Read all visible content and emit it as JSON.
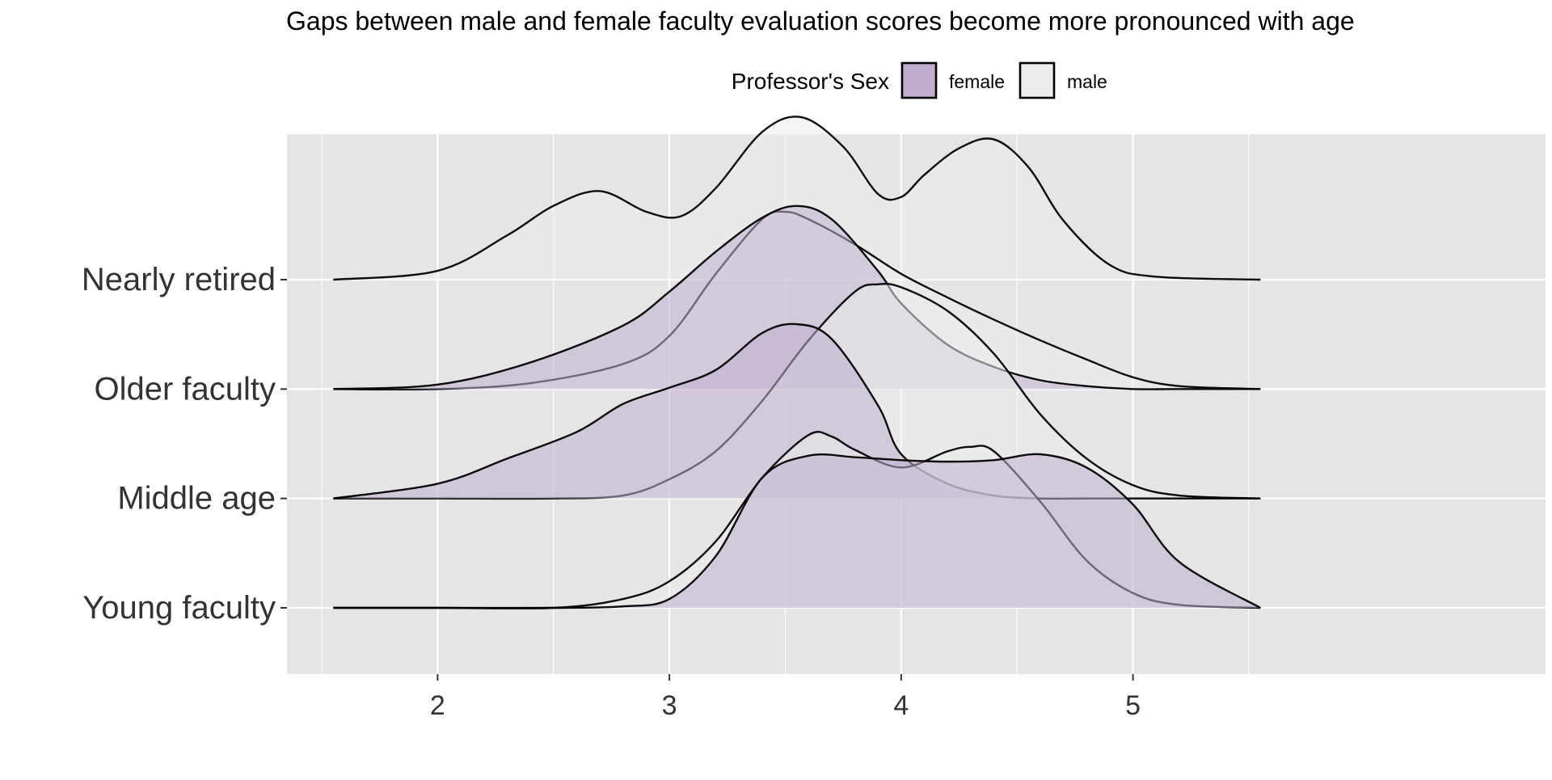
{
  "chart_data": {
    "type": "area",
    "subtype": "ridgeline-density",
    "title": "Gaps between male and female faculty evaluation scores become more pronounced with age",
    "xlabel": "",
    "ylabel": "",
    "xlim": [
      1.5,
      5.55
    ],
    "x_ticks": [
      2,
      3,
      4,
      5
    ],
    "x_tick_labels": [
      "2",
      "3",
      "4",
      "5"
    ],
    "categories": [
      "Young faculty",
      "Middle age",
      "Older faculty",
      "Nearly retired"
    ],
    "legend": {
      "title": "Professor's Sex",
      "position": "top",
      "entries": [
        {
          "label": "female",
          "color": "#c0aecf"
        },
        {
          "label": "male",
          "color": "#ededed"
        }
      ]
    },
    "colors": {
      "female": "#c0aecf",
      "male": "#ededed",
      "panel": "#e5e5e5",
      "grid": "#ffffff"
    },
    "ridge_height_scale": 1.35,
    "series": [
      {
        "name": "female",
        "category": "Young faculty",
        "x": [
          1.55,
          2.0,
          2.5,
          2.8,
          3.0,
          3.2,
          3.4,
          3.6,
          3.8,
          4.0,
          4.2,
          4.4,
          4.6,
          4.8,
          5.0,
          5.2,
          5.55
        ],
        "y": [
          0.0,
          0.0,
          0.0,
          0.01,
          0.06,
          0.35,
          0.88,
          1.03,
          1.02,
          1.0,
          0.99,
          1.0,
          1.04,
          0.95,
          0.7,
          0.31,
          0.0
        ]
      },
      {
        "name": "male",
        "category": "Young faculty",
        "x": [
          1.55,
          2.0,
          2.5,
          2.8,
          3.0,
          3.2,
          3.4,
          3.6,
          3.7,
          3.8,
          4.0,
          4.2,
          4.3,
          4.4,
          4.6,
          4.8,
          5.0,
          5.2,
          5.55
        ],
        "y": [
          0.0,
          0.0,
          0.0,
          0.06,
          0.18,
          0.45,
          0.88,
          1.17,
          1.16,
          1.07,
          0.95,
          1.06,
          1.09,
          1.06,
          0.72,
          0.32,
          0.1,
          0.02,
          0.0
        ]
      },
      {
        "name": "female",
        "category": "Middle age",
        "x": [
          1.55,
          2.0,
          2.3,
          2.6,
          2.8,
          3.0,
          3.2,
          3.4,
          3.55,
          3.7,
          3.9,
          4.0,
          4.2,
          4.4,
          4.6,
          4.8,
          5.0,
          5.2,
          5.55
        ],
        "y": [
          0.0,
          0.1,
          0.27,
          0.45,
          0.64,
          0.75,
          0.87,
          1.12,
          1.18,
          1.08,
          0.63,
          0.3,
          0.1,
          0.02,
          0.0,
          0.0,
          0.0,
          0.0,
          0.0
        ]
      },
      {
        "name": "male",
        "category": "Middle age",
        "x": [
          1.55,
          2.0,
          2.5,
          2.8,
          3.0,
          3.2,
          3.4,
          3.6,
          3.8,
          3.9,
          4.0,
          4.2,
          4.4,
          4.6,
          4.8,
          5.0,
          5.2,
          5.55
        ],
        "y": [
          0.0,
          0.0,
          0.0,
          0.02,
          0.13,
          0.32,
          0.66,
          1.07,
          1.4,
          1.45,
          1.43,
          1.27,
          0.98,
          0.57,
          0.27,
          0.09,
          0.02,
          0.0
        ]
      },
      {
        "name": "female",
        "category": "Older faculty",
        "x": [
          1.55,
          2.0,
          2.4,
          2.8,
          3.0,
          3.2,
          3.4,
          3.55,
          3.7,
          3.9,
          4.0,
          4.2,
          4.4,
          4.6,
          4.8,
          5.0,
          5.2,
          5.55
        ],
        "y": [
          0.0,
          0.03,
          0.18,
          0.43,
          0.66,
          0.93,
          1.16,
          1.24,
          1.15,
          0.8,
          0.58,
          0.3,
          0.15,
          0.06,
          0.02,
          0.0,
          0.0,
          0.0
        ]
      },
      {
        "name": "male",
        "category": "Older faculty",
        "x": [
          1.55,
          2.0,
          2.4,
          2.8,
          3.0,
          3.2,
          3.4,
          3.5,
          3.6,
          3.8,
          4.0,
          4.2,
          4.4,
          4.6,
          4.8,
          5.0,
          5.2,
          5.55
        ],
        "y": [
          0.0,
          0.0,
          0.04,
          0.17,
          0.36,
          0.78,
          1.15,
          1.2,
          1.15,
          0.98,
          0.78,
          0.62,
          0.47,
          0.33,
          0.2,
          0.08,
          0.02,
          0.0
        ]
      },
      {
        "name": "male",
        "category": "Nearly retired",
        "x": [
          1.55,
          2.0,
          2.3,
          2.5,
          2.7,
          2.9,
          3.05,
          3.2,
          3.4,
          3.57,
          3.75,
          3.9,
          4.0,
          4.1,
          4.25,
          4.4,
          4.55,
          4.7,
          4.9,
          5.1,
          5.55
        ],
        "y": [
          0.0,
          0.06,
          0.3,
          0.5,
          0.6,
          0.46,
          0.43,
          0.62,
          1.0,
          1.1,
          0.9,
          0.58,
          0.56,
          0.71,
          0.89,
          0.95,
          0.76,
          0.4,
          0.1,
          0.02,
          0.0
        ]
      }
    ]
  }
}
